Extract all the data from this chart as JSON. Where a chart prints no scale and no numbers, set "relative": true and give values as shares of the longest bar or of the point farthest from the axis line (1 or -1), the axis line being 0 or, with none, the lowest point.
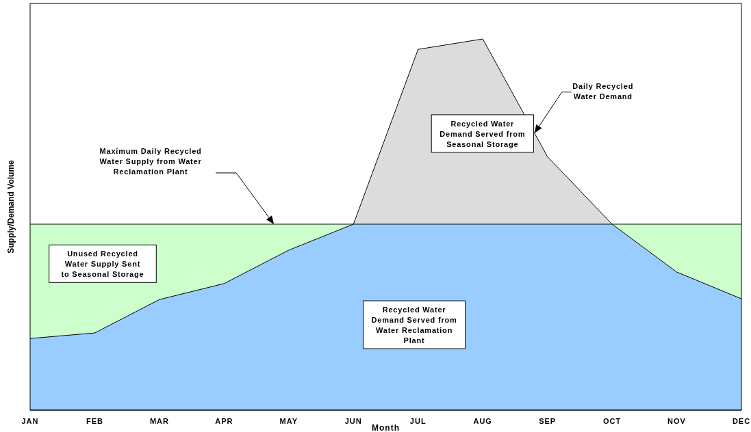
{
  "chart_data": {
    "type": "area",
    "xlabel": "Month",
    "ylabel": "Supply/Demand Volume",
    "relative": true,
    "categories": [
      "JAN",
      "FEB",
      "MAR",
      "APR",
      "MAY",
      "JUN",
      "JUL",
      "AUG",
      "SEP",
      "OCT",
      "NOV",
      "DEC"
    ],
    "series": [
      {
        "type": "area",
        "color": "#99ccff",
        "values": [
          0.193,
          0.208,
          0.298,
          0.341,
          0.431,
          0.501,
          0.972,
          1,
          0.683,
          0.501,
          0.372,
          0.3
        ]
      }
    ],
    "ref_lines": [
      {
        "axis": "y",
        "value": 0.501,
        "label": "Maximum Daily Recycled Water Supply from Water Reclamation Plant",
        "color": "#000000"
      }
    ],
    "bands": [
      {
        "axis": "y",
        "from": 0,
        "to": 0.501,
        "color": "#ccffcc"
      }
    ],
    "annotations": [
      "Daily Recycled Water Demand",
      "Recycled Water Demand Served from Seasonal Storage",
      "Unused Recycled Water Supply Sent to Seasonal Storage",
      "Recycled Water Demand Served from Water Reclamation Plant"
    ]
  }
}
